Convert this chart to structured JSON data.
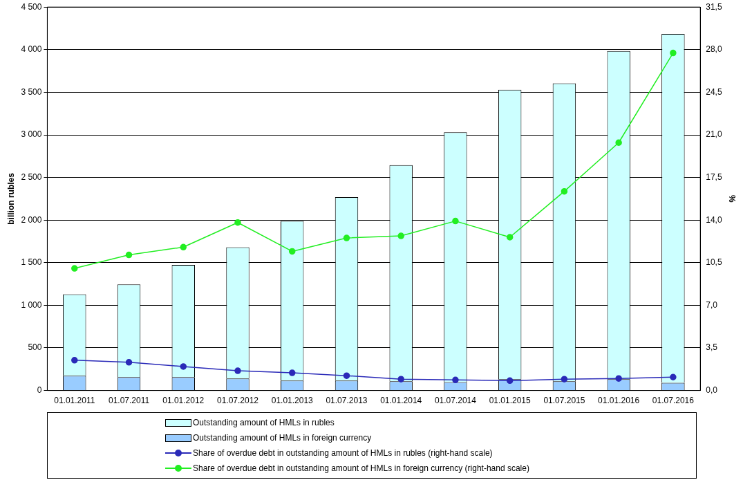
{
  "chart_data": {
    "type": "bar",
    "stacked": true,
    "ylabel": "billion rubles",
    "y2label": "%",
    "categories": [
      "01.01.2011",
      "01.07.2011",
      "01.01.2012",
      "01.07.2012",
      "01.01.2013",
      "01.07.2013",
      "01.01.2014",
      "01.07.2014",
      "01.01.2015",
      "01.07.2015",
      "01.01.2016",
      "01.07.2016"
    ],
    "series": [
      {
        "name": "Outstanding amount of HMLs in foreign currency",
        "color": "#99ccff",
        "values": [
          174,
          157,
          157,
          141,
          116,
          116,
          108,
          99,
          133,
          108,
          133,
          91
        ]
      },
      {
        "name": "Outstanding amount of HMLs in rubles",
        "color": "#ccffff",
        "values": [
          956,
          1088,
          1318,
          1541,
          1874,
          2154,
          2537,
          2931,
          3397,
          3497,
          3852,
          4094
        ]
      },
      {
        "name": "Share of overdue debt in outstanding amount of HMLs in rubles (right-hand scale)",
        "type": "line",
        "axis": "y2",
        "color": "#2a2ab8",
        "values": [
          2.49,
          2.32,
          1.97,
          1.62,
          1.45,
          1.22,
          0.93,
          0.87,
          0.81,
          0.93,
          0.99,
          1.1
        ]
      },
      {
        "name": "Share of overdue debt in outstanding amount of HMLs in foreign currency (right-hand scale)",
        "type": "line",
        "axis": "y2",
        "color": "#22ee22",
        "values": [
          10.03,
          11.14,
          11.78,
          13.8,
          11.43,
          12.53,
          12.7,
          13.92,
          12.59,
          16.36,
          20.36,
          27.73
        ]
      }
    ],
    "ylim": [
      0,
      4500
    ],
    "yticks": [
      0,
      500,
      {
        "value": 1000,
        "label": "1 000"
      },
      {
        "value": 1500,
        "label": "1 500"
      },
      {
        "value": 2000,
        "label": "2 000"
      },
      {
        "value": 2500,
        "label": "2 500"
      },
      {
        "value": 3000,
        "label": "3 000"
      },
      {
        "value": 3500,
        "label": "3 500"
      },
      {
        "value": 4000,
        "label": "4 000"
      },
      {
        "value": 4500,
        "label": "4 500"
      }
    ],
    "y2lim": [
      0,
      31.5
    ],
    "y2ticks": [
      {
        "value": 0,
        "label": "0,0"
      },
      {
        "value": 3.5,
        "label": "3,5"
      },
      {
        "value": 7,
        "label": "7,0"
      },
      {
        "value": 10.5,
        "label": "10,5"
      },
      {
        "value": 14,
        "label": "14,0"
      },
      {
        "value": 17.5,
        "label": "17,5"
      },
      {
        "value": 21,
        "label": "21,0"
      },
      {
        "value": 24.5,
        "label": "24,5"
      },
      {
        "value": 28,
        "label": "28,0"
      },
      {
        "value": 31.5,
        "label": "31,5"
      }
    ],
    "grid": "y",
    "legend": "bottom",
    "marker": "circle",
    "line_style": "solid"
  }
}
